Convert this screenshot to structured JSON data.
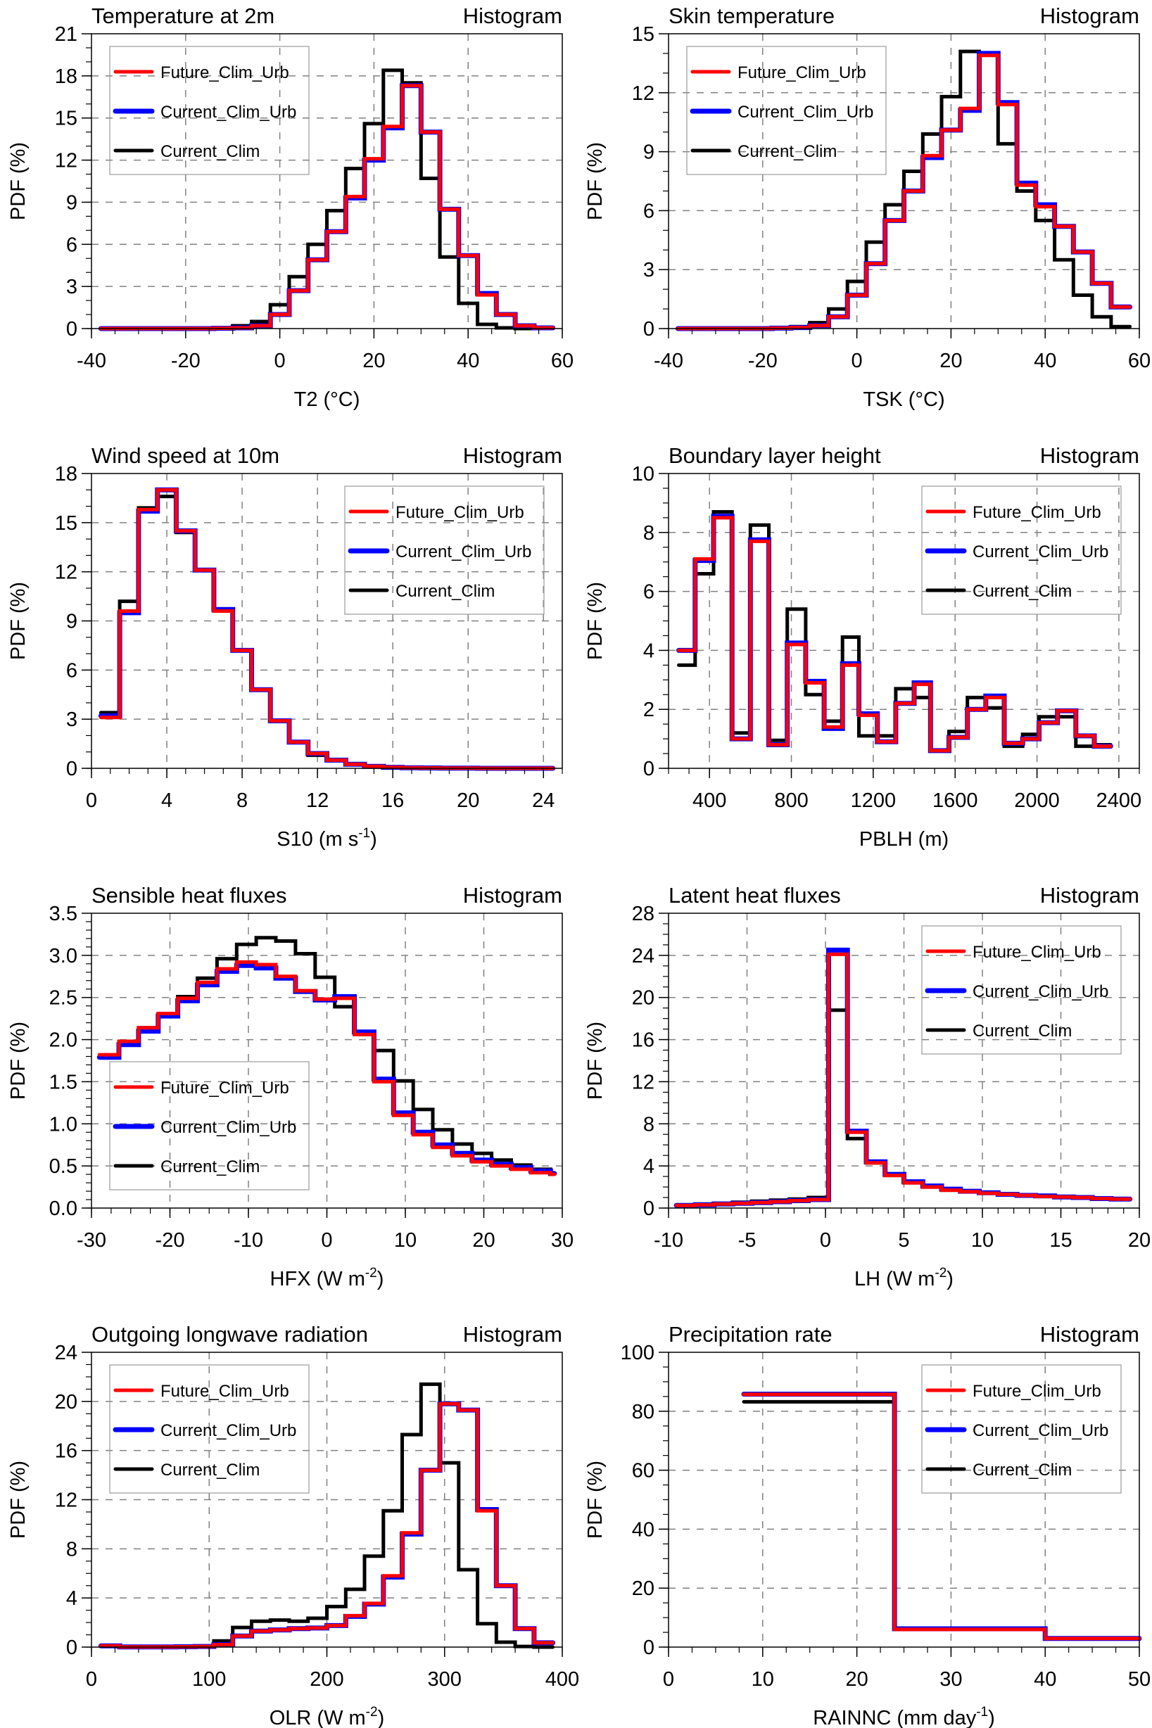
{
  "figure": {
    "layout": "4 rows x 2 columns of step histograms"
  },
  "legend_entries": [
    {
      "name": "Future_Clim_Urb",
      "color": "#ff0000"
    },
    {
      "name": "Current_Clim_Urb",
      "color": "#0000ff"
    },
    {
      "name": "Current_Clim",
      "color": "#000000"
    }
  ],
  "grid_color": "#808080",
  "chart_data": [
    {
      "type": "line",
      "title": "Temperature at 2m",
      "subtitle": "Histogram",
      "xlabel": "T2 (°C)",
      "ylabel": "PDF (%)",
      "xlim": [
        -40,
        60
      ],
      "ylim": [
        0,
        21
      ],
      "xticks": [
        -40,
        -20,
        0,
        20,
        40,
        60
      ],
      "yticks": [
        0,
        3,
        6,
        9,
        12,
        15,
        18,
        21
      ],
      "grid": true,
      "legend_position": "top-left",
      "bin_edges": [
        -38,
        -34,
        -30,
        -26,
        -22,
        -18,
        -14,
        -10,
        -6,
        -2,
        2,
        6,
        10,
        14,
        18,
        22,
        26,
        30,
        34,
        38,
        42,
        46,
        50,
        54,
        58
      ],
      "series": [
        {
          "name": "Future_Clim_Urb",
          "values": [
            0,
            0,
            0,
            0,
            0,
            0,
            0.02,
            0.05,
            0.2,
            1.0,
            2.7,
            4.9,
            6.9,
            9.4,
            12.1,
            14.4,
            17.3,
            14.0,
            8.5,
            5.2,
            2.4,
            1.0,
            0.2,
            0.05
          ]
        },
        {
          "name": "Current_Clim_Urb",
          "values": [
            0,
            0,
            0,
            0,
            0,
            0,
            0.02,
            0.05,
            0.2,
            1.0,
            2.7,
            4.9,
            6.9,
            9.3,
            12.0,
            14.3,
            17.3,
            14.0,
            8.5,
            5.2,
            2.5,
            1.0,
            0.2,
            0.05
          ]
        },
        {
          "name": "Current_Clim",
          "values": [
            0,
            0,
            0,
            0,
            0,
            0,
            0.05,
            0.2,
            0.5,
            1.7,
            3.7,
            6.0,
            8.4,
            11.4,
            14.6,
            18.4,
            17.5,
            10.7,
            5.1,
            1.8,
            0.3,
            0.05,
            0,
            0
          ]
        }
      ]
    },
    {
      "type": "line",
      "title": "Skin temperature",
      "subtitle": "Histogram",
      "xlabel": "TSK (°C)",
      "ylabel": "PDF (%)",
      "xlim": [
        -40,
        60
      ],
      "ylim": [
        0,
        15
      ],
      "xticks": [
        -40,
        -20,
        0,
        20,
        40,
        60
      ],
      "yticks": [
        0,
        3,
        6,
        9,
        12,
        15
      ],
      "grid": true,
      "legend_position": "top-left",
      "bin_edges": [
        -38,
        -34,
        -30,
        -26,
        -22,
        -18,
        -14,
        -10,
        -6,
        -2,
        2,
        6,
        10,
        14,
        18,
        22,
        26,
        30,
        34,
        38,
        42,
        46,
        50,
        54,
        58
      ],
      "series": [
        {
          "name": "Future_Clim_Urb",
          "values": [
            0,
            0,
            0,
            0,
            0,
            0.02,
            0.05,
            0.15,
            0.6,
            1.7,
            3.3,
            5.5,
            7.0,
            8.8,
            10.1,
            11.2,
            13.9,
            11.4,
            7.3,
            6.2,
            5.2,
            3.9,
            2.3,
            1.1
          ]
        },
        {
          "name": "Current_Clim_Urb",
          "values": [
            0,
            0,
            0,
            0,
            0,
            0.02,
            0.05,
            0.15,
            0.6,
            1.7,
            3.3,
            5.5,
            7.0,
            8.7,
            10.1,
            11.1,
            14.0,
            11.5,
            7.4,
            6.3,
            5.2,
            3.9,
            2.3,
            1.1
          ]
        },
        {
          "name": "Current_Clim",
          "values": [
            0,
            0,
            0,
            0,
            0,
            0.05,
            0.1,
            0.3,
            1.0,
            2.4,
            4.4,
            6.3,
            8.0,
            9.9,
            11.8,
            14.1,
            14.0,
            9.4,
            7.0,
            5.5,
            3.5,
            1.7,
            0.6,
            0.1
          ]
        }
      ]
    },
    {
      "type": "line",
      "title": "Wind speed at 10m",
      "subtitle": "Histogram",
      "xlabel": "S10 (m s",
      "xlabel_sup": "-1",
      "xlabel_end": ")",
      "ylabel": "PDF (%)",
      "xlim": [
        0,
        25
      ],
      "ylim": [
        0,
        18
      ],
      "xticks": [
        0,
        4,
        8,
        12,
        16,
        20,
        24
      ],
      "yticks": [
        0,
        3,
        6,
        9,
        12,
        15,
        18
      ],
      "grid": true,
      "legend_position": "top-right",
      "bin_edges": [
        0.5,
        1.5,
        2.5,
        3.5,
        4.5,
        5.5,
        6.5,
        7.5,
        8.5,
        9.5,
        10.5,
        11.5,
        12.5,
        13.5,
        14.5,
        15.5,
        16.5,
        17.5,
        18.5,
        19.5,
        20.5,
        21.5,
        22.5,
        23.5,
        24.5
      ],
      "series": [
        {
          "name": "Future_Clim_Urb",
          "values": [
            3.1,
            9.6,
            15.8,
            17.0,
            14.5,
            12.1,
            9.6,
            7.2,
            4.8,
            2.9,
            1.6,
            0.9,
            0.5,
            0.25,
            0.12,
            0.06,
            0.03,
            0.02,
            0.01,
            0.01,
            0,
            0,
            0,
            0
          ]
        },
        {
          "name": "Current_Clim_Urb",
          "values": [
            3.2,
            9.5,
            15.7,
            17.0,
            14.5,
            12.1,
            9.7,
            7.2,
            4.8,
            2.9,
            1.6,
            0.9,
            0.5,
            0.25,
            0.12,
            0.06,
            0.03,
            0.02,
            0.01,
            0.01,
            0,
            0,
            0,
            0
          ]
        },
        {
          "name": "Current_Clim",
          "values": [
            3.4,
            10.2,
            15.9,
            16.6,
            14.4,
            12.1,
            9.6,
            7.2,
            4.8,
            2.9,
            1.6,
            0.8,
            0.5,
            0.25,
            0.12,
            0.06,
            0.03,
            0.02,
            0.01,
            0.01,
            0,
            0,
            0,
            0
          ]
        }
      ]
    },
    {
      "type": "line",
      "title": "Boundary layer height",
      "subtitle": "Histogram",
      "xlabel": "PBLH (m)",
      "ylabel": "PDF (%)",
      "xlim": [
        200,
        2500
      ],
      "ylim": [
        0,
        10
      ],
      "xticks": [
        400,
        800,
        1200,
        1600,
        2000,
        2400
      ],
      "yticks": [
        0,
        2,
        4,
        6,
        8,
        10
      ],
      "grid": true,
      "legend_position": "top-right",
      "bin_edges": [
        250,
        330,
        420,
        510,
        600,
        690,
        780,
        870,
        960,
        1050,
        1130,
        1220,
        1310,
        1400,
        1480,
        1570,
        1660,
        1750,
        1840,
        1930,
        2010,
        2100,
        2190,
        2280,
        2360
      ],
      "series": [
        {
          "name": "Future_Clim_Urb",
          "values": [
            4.0,
            7.1,
            8.5,
            1.0,
            7.7,
            0.8,
            4.2,
            2.9,
            1.4,
            3.5,
            1.8,
            0.9,
            2.2,
            2.85,
            0.6,
            1.05,
            2.0,
            2.4,
            0.85,
            1.0,
            1.55,
            1.95,
            1.1,
            0.75
          ]
        },
        {
          "name": "Current_Clim_Urb",
          "values": [
            4.0,
            7.05,
            8.55,
            1.0,
            7.75,
            0.8,
            4.25,
            2.95,
            1.35,
            3.55,
            1.85,
            0.9,
            2.2,
            2.9,
            0.6,
            1.05,
            2.0,
            2.45,
            0.85,
            1.0,
            1.55,
            1.95,
            1.1,
            0.75
          ]
        },
        {
          "name": "Current_Clim",
          "values": [
            3.5,
            6.6,
            8.7,
            1.2,
            8.25,
            0.95,
            5.4,
            2.5,
            1.6,
            4.45,
            1.1,
            1.1,
            2.7,
            2.4,
            0.6,
            1.25,
            2.4,
            2.05,
            0.75,
            1.15,
            1.75,
            1.75,
            0.75,
            0.8
          ]
        }
      ]
    },
    {
      "type": "line",
      "title": "Sensible heat fluxes",
      "subtitle": "Histogram",
      "xlabel": "HFX (W m",
      "xlabel_sup": "-2",
      "xlabel_end": ")",
      "ylabel": "PDF (%)",
      "xlim": [
        -30,
        30
      ],
      "ylim": [
        0,
        3.5
      ],
      "xticks": [
        -30,
        -20,
        -10,
        0,
        10,
        20,
        30
      ],
      "yticks": [
        0.0,
        0.5,
        1.0,
        1.5,
        2.0,
        2.5,
        3.0,
        3.5
      ],
      "ytick_labels": [
        "0.0",
        "0.5",
        "1.0",
        "1.5",
        "2.0",
        "2.5",
        "3.0",
        "3.5"
      ],
      "grid": true,
      "legend_position": "bottom-left",
      "bin_edges": [
        -29,
        -26.5,
        -24,
        -21.5,
        -19,
        -16.5,
        -14,
        -11.5,
        -9,
        -6.5,
        -4,
        -1.5,
        1,
        3.5,
        6,
        8.5,
        11,
        13.5,
        16,
        18.5,
        21,
        23.5,
        26,
        28.5,
        29
      ],
      "series": [
        {
          "name": "Future_Clim_Urb",
          "values": [
            1.82,
            1.98,
            2.14,
            2.31,
            2.49,
            2.68,
            2.84,
            2.92,
            2.89,
            2.75,
            2.58,
            2.48,
            2.49,
            2.06,
            1.5,
            1.1,
            0.87,
            0.72,
            0.62,
            0.55,
            0.5,
            0.46,
            0.42,
            0.4
          ]
        },
        {
          "name": "Current_Clim_Urb",
          "values": [
            1.79,
            1.94,
            2.1,
            2.28,
            2.46,
            2.65,
            2.81,
            2.88,
            2.85,
            2.73,
            2.57,
            2.47,
            2.51,
            2.09,
            1.53,
            1.13,
            0.9,
            0.75,
            0.65,
            0.57,
            0.52,
            0.48,
            0.44,
            0.41
          ]
        },
        {
          "name": "Current_Clim",
          "values": [
            1.79,
            1.97,
            2.14,
            2.31,
            2.51,
            2.73,
            2.96,
            3.13,
            3.21,
            3.17,
            3.02,
            2.74,
            2.39,
            2.07,
            1.87,
            1.51,
            1.17,
            0.93,
            0.76,
            0.65,
            0.57,
            0.51,
            0.46,
            0.41
          ]
        }
      ]
    },
    {
      "type": "line",
      "title": "Latent heat fluxes",
      "subtitle": "Histogram",
      "xlabel": "LH (W m",
      "xlabel_sup": "-2",
      "xlabel_end": ")",
      "ylabel": "PDF (%)",
      "xlim": [
        -10,
        20
      ],
      "ylim": [
        0,
        28
      ],
      "xticks": [
        -10,
        -5,
        0,
        5,
        10,
        15,
        20
      ],
      "yticks": [
        0,
        4,
        8,
        12,
        16,
        20,
        24,
        28
      ],
      "grid": true,
      "legend_position": "top-right",
      "bin_edges": [
        -9.5,
        -8.3,
        -7.1,
        -5.9,
        -4.7,
        -3.5,
        -2.3,
        -1.1,
        0.2,
        1.4,
        2.6,
        3.8,
        5.0,
        6.2,
        7.4,
        8.6,
        9.8,
        11.0,
        12.2,
        13.4,
        14.6,
        15.8,
        17.0,
        18.2,
        19.4
      ],
      "series": [
        {
          "name": "Future_Clim_Urb",
          "values": [
            0.25,
            0.3,
            0.38,
            0.45,
            0.52,
            0.6,
            0.7,
            0.8,
            24.1,
            7.2,
            4.3,
            3.1,
            2.4,
            2.0,
            1.7,
            1.55,
            1.4,
            1.3,
            1.2,
            1.1,
            1.05,
            1.0,
            0.9,
            0.85
          ]
        },
        {
          "name": "Current_Clim_Urb",
          "values": [
            0.25,
            0.3,
            0.38,
            0.45,
            0.52,
            0.6,
            0.7,
            0.8,
            24.5,
            7.3,
            4.4,
            3.2,
            2.5,
            2.1,
            1.8,
            1.6,
            1.45,
            1.3,
            1.2,
            1.15,
            1.05,
            1.0,
            0.9,
            0.85
          ]
        },
        {
          "name": "Current_Clim",
          "values": [
            0.3,
            0.38,
            0.45,
            0.55,
            0.65,
            0.75,
            0.85,
            1.0,
            18.8,
            6.6,
            4.3,
            3.1,
            2.4,
            2.0,
            1.7,
            1.55,
            1.4,
            1.3,
            1.2,
            1.1,
            1.05,
            1.0,
            0.9,
            0.85
          ]
        }
      ]
    },
    {
      "type": "line",
      "title": "Outgoing longwave radiation",
      "subtitle": "Histogram",
      "xlabel": "OLR (W m",
      "xlabel_sup": "-2",
      "xlabel_end": ")",
      "ylabel": "PDF (%)",
      "xlim": [
        0,
        400
      ],
      "ylim": [
        0,
        24
      ],
      "xticks": [
        0,
        100,
        200,
        300,
        400
      ],
      "yticks": [
        0,
        4,
        8,
        12,
        16,
        20,
        24
      ],
      "grid": true,
      "legend_position": "top-left",
      "bin_edges": [
        8,
        24,
        40,
        56,
        72,
        88,
        104,
        120,
        136,
        152,
        168,
        184,
        200,
        216,
        232,
        248,
        264,
        280,
        296,
        312,
        328,
        344,
        360,
        376,
        392
      ],
      "series": [
        {
          "name": "Future_Clim_Urb",
          "values": [
            0.1,
            0.02,
            0.02,
            0.02,
            0.03,
            0.05,
            0.2,
            0.9,
            1.3,
            1.4,
            1.5,
            1.55,
            1.75,
            2.55,
            3.55,
            5.8,
            9.3,
            14.4,
            19.8,
            19.3,
            11.1,
            5.0,
            1.5,
            0.35
          ]
        },
        {
          "name": "Current_Clim_Urb",
          "values": [
            0.1,
            0.02,
            0.02,
            0.02,
            0.03,
            0.05,
            0.2,
            0.9,
            1.3,
            1.4,
            1.5,
            1.55,
            1.75,
            2.5,
            3.5,
            5.7,
            9.2,
            14.4,
            19.8,
            19.3,
            11.2,
            5.0,
            1.5,
            0.35
          ]
        },
        {
          "name": "Current_Clim",
          "values": [
            0.1,
            0.02,
            0.02,
            0.02,
            0.03,
            0.05,
            0.5,
            1.6,
            2.1,
            2.2,
            2.1,
            2.35,
            3.3,
            4.7,
            7.4,
            11.1,
            17.3,
            21.4,
            15.0,
            6.3,
            1.9,
            0.4,
            0.05,
            0
          ]
        }
      ]
    },
    {
      "type": "line",
      "title": "Precipitation rate",
      "subtitle": "Histogram",
      "xlabel": "RAINNC (mm day",
      "xlabel_sup": "-1",
      "xlabel_end": ")",
      "ylabel": "PDF (%)",
      "xlim": [
        0,
        50
      ],
      "ylim": [
        0,
        100
      ],
      "xticks": [
        0,
        10,
        20,
        30,
        40,
        50
      ],
      "yticks": [
        0,
        20,
        40,
        60,
        80,
        100
      ],
      "grid": true,
      "legend_position": "top-right",
      "bin_edges": [
        8,
        24,
        40,
        50
      ],
      "series": [
        {
          "name": "Future_Clim_Urb",
          "values": [
            85.7,
            6.0,
            2.9
          ]
        },
        {
          "name": "Current_Clim_Urb",
          "values": [
            85.8,
            6.2,
            2.9
          ]
        },
        {
          "name": "Current_Clim",
          "values": [
            83.2,
            6.0,
            2.9
          ]
        }
      ]
    }
  ]
}
